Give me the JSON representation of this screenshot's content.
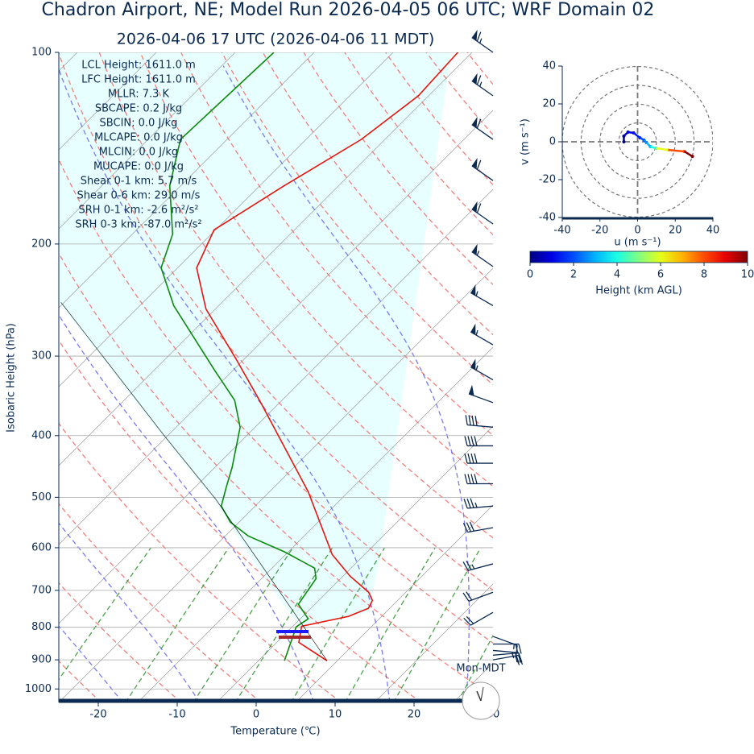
{
  "chart_data": [
    {
      "type": "skewt",
      "title": "Chadron Airport, NE; Model Run 2026-04-05 06 UTC; WRF Domain 02",
      "subtitle": "2026-04-06 17 UTC  (2026-04-06 11 MDT)",
      "xlabel": "Temperature (℃)",
      "ylabel": "Isobaric Height (hPa)",
      "xlim": [
        -25,
        30
      ],
      "ylim": [
        1050,
        100
      ],
      "log_y": true,
      "grid": true,
      "xticks": [
        -20,
        -10,
        0,
        10,
        20,
        30
      ],
      "yticks": [
        100,
        200,
        300,
        400,
        500,
        600,
        700,
        800,
        900,
        1000
      ],
      "annotations": [
        "LCL Height: 1611.0 m",
        "LFC Height: 1611.0 m",
        "MLLR: 7.3 K",
        "SBCAPE: 0.2 J/kg",
        "SBCIN: 0.0 J/kg",
        "MLCAPE: 0.0 J/kg",
        "MLCIN: 0.0 J/kg",
        "MUCAPE: 0.0 J/kg",
        "Shear 0-1 km: 5.7 m/s",
        "Shear 0-6 km: 29.0 m/s",
        "SRH 0-1 km: -2.6 m²/s²",
        "SRH 0-3 km: -87.0 m²/s²"
      ],
      "timezone_label": "Mon-MDT",
      "series": [
        {
          "color": "#e8140e",
          "width": 1.6,
          "pressure": [
            903,
            845,
            797,
            769,
            747,
            726,
            705,
            665,
            615,
            490,
            355,
            304,
            253,
            218,
            190,
            162,
            137,
            117,
            100
          ],
          "values": [
            3.7,
            -2.2,
            -3.9,
            0.8,
            2.3,
            1.8,
            0.3,
            -4.1,
            -9.1,
            -20.1,
            -37.4,
            -45.9,
            -56.2,
            -62.6,
            -65.2,
            -61.9,
            -58.0,
            -56.3,
            -56.8
          ]
        },
        {
          "color": "#0c8a0c",
          "width": 1.6,
          "pressure": [
            903,
            799,
            776,
            736,
            671,
            646,
            609,
            575,
            547,
            516,
            483,
            449,
            388,
            352,
            316,
            250,
            218,
            193,
            162,
            137,
            100
          ],
          "values": [
            -1.7,
            -4.5,
            -4.0,
            -7.1,
            -8.1,
            -9.6,
            -15.5,
            -22.1,
            -26.1,
            -29.3,
            -31.0,
            -32.8,
            -36.9,
            -41.0,
            -47.3,
            -60.7,
            -67.1,
            -69.9,
            -76.4,
            -80.9,
            -80.1
          ]
        },
        {
          "color": "#000000",
          "width": 0.6,
          "pressure": [
            903,
            636,
            504,
            399,
            247
          ],
          "values": [
            3.7,
            -17.0,
            -30.8,
            -45.6,
            -75.4
          ]
        }
      ],
      "wind": {
        "color": "#0a2a52",
        "pressure": [
          100,
          117,
          137,
          159,
          186,
          217,
          250,
          288,
          327,
          355,
          388,
          415,
          442,
          476,
          516,
          558,
          636,
          705,
          758,
          827,
          850,
          870,
          885,
          900
        ],
        "speed": [
          65,
          65,
          60,
          60,
          60,
          55,
          55,
          55,
          55,
          50,
          40,
          40,
          40,
          40,
          35,
          30,
          25,
          20,
          20,
          15,
          20,
          25,
          25,
          20
        ],
        "direction": [
          305,
          305,
          305,
          305,
          305,
          305,
          300,
          300,
          300,
          290,
          275,
          270,
          270,
          270,
          265,
          260,
          255,
          250,
          240,
          110,
          90,
          95,
          85,
          80
        ]
      }
    },
    {
      "type": "hodograph",
      "xlabel": "u (m s⁻¹)",
      "ylabel": "v (m s⁻¹)",
      "xlim": [
        -40,
        40
      ],
      "ylim": [
        -40,
        40
      ],
      "xticks": [
        -40,
        -20,
        0,
        20,
        40
      ],
      "yticks": [
        -40,
        -20,
        0,
        20,
        40
      ],
      "rings": [
        10,
        20,
        30,
        40
      ],
      "u": [
        -7.3,
        -7.3,
        -5.1,
        -2.1,
        1.3,
        3.4,
        4.7,
        6.8,
        9.8,
        16.2,
        24.8,
        29.1
      ],
      "v": [
        0,
        3.0,
        5.1,
        4.7,
        2.1,
        0.9,
        -0.4,
        -2.6,
        -3.4,
        -4.3,
        -5.1,
        -7.7
      ],
      "height": [
        0,
        0.3,
        0.6,
        1,
        1.5,
        2,
        2.5,
        3,
        4,
        6,
        8,
        10
      ],
      "colorbar": {
        "label": "Height (km AGL)",
        "lim": [
          0,
          10
        ],
        "ticks": [
          0,
          2,
          4,
          6,
          8,
          10
        ],
        "colormap": "jet"
      }
    }
  ]
}
